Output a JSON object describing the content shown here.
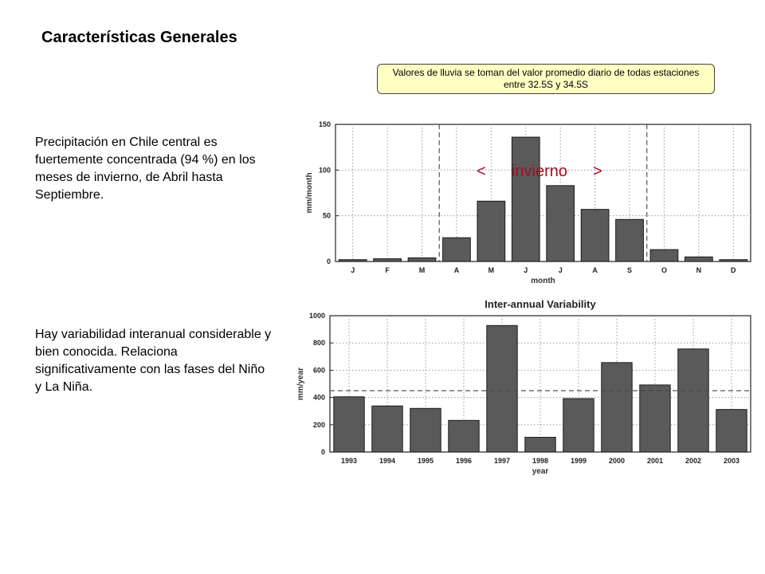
{
  "page": {
    "title": "Características Generales",
    "note": "Valores de lluvia se toman del valor promedio diario de todas estaciones entre 32.5S y 34.5S",
    "paragraph1": "Precipitación en Chile central es fuertemente concentrada (94 %) en los meses de invierno, de Abril hasta Septiembre.",
    "paragraph2": "Hay variabilidad interanual considerable y bien conocida. Relaciona significativamente con las fases del Niño y La Niña."
  },
  "colors": {
    "bar": "#5a5a5a",
    "annotation": "#a01020",
    "note_bg": "#ffffc4"
  },
  "chart_data": [
    {
      "type": "bar",
      "title": "",
      "xlabel": "month",
      "ylabel": "mm/month",
      "categories": [
        "J",
        "F",
        "M",
        "A",
        "M",
        "J",
        "J",
        "A",
        "S",
        "O",
        "N",
        "D"
      ],
      "values": [
        2,
        3,
        4,
        26,
        66,
        136,
        83,
        57,
        46,
        13,
        5,
        2
      ],
      "ylim": [
        0,
        150
      ],
      "yticks": [
        0,
        50,
        100,
        150
      ],
      "grid": true,
      "markers": [
        {
          "kind": "vline",
          "between": [
            "M",
            "A"
          ]
        },
        {
          "kind": "vline",
          "between": [
            "S",
            "O"
          ]
        }
      ],
      "annotation": {
        "left": "<",
        "text": "invierno",
        "right": ">"
      }
    },
    {
      "type": "bar",
      "title": "Inter-annual Variability",
      "xlabel": "year",
      "ylabel": "mm/year",
      "categories": [
        "1993",
        "1994",
        "1995",
        "1996",
        "1997",
        "1998",
        "1999",
        "2000",
        "2001",
        "2002",
        "2003"
      ],
      "values": [
        405,
        338,
        320,
        232,
        928,
        108,
        392,
        656,
        492,
        756,
        312
      ],
      "ylim": [
        0,
        1000
      ],
      "yticks": [
        0,
        200,
        400,
        600,
        800,
        1000
      ],
      "grid": true,
      "hline": 450
    }
  ]
}
